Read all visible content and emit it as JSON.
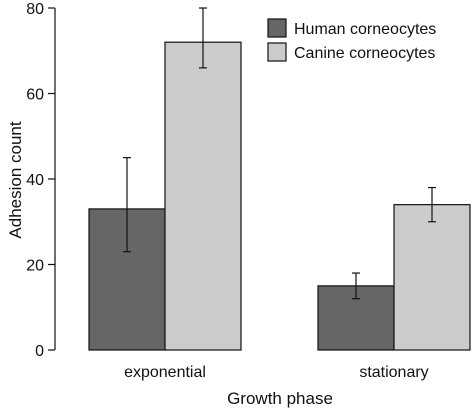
{
  "chart_data": {
    "type": "bar",
    "xlabel": "Growth phase",
    "ylabel": "Adhesion count",
    "ylim": [
      0,
      80
    ],
    "yticks": [
      0,
      20,
      40,
      60,
      80
    ],
    "grid": false,
    "legend_position": "top-right",
    "categories": [
      "exponential",
      "stationary"
    ],
    "series": [
      {
        "name": "Human corneocytes",
        "color": "#666666",
        "values": [
          33,
          15
        ],
        "error_low": [
          23,
          12
        ],
        "error_high": [
          45,
          18
        ]
      },
      {
        "name": "Canine corneocytes",
        "color": "#cccccc",
        "values": [
          72,
          34
        ],
        "error_low": [
          66,
          30
        ],
        "error_high": [
          80,
          38
        ]
      }
    ]
  }
}
